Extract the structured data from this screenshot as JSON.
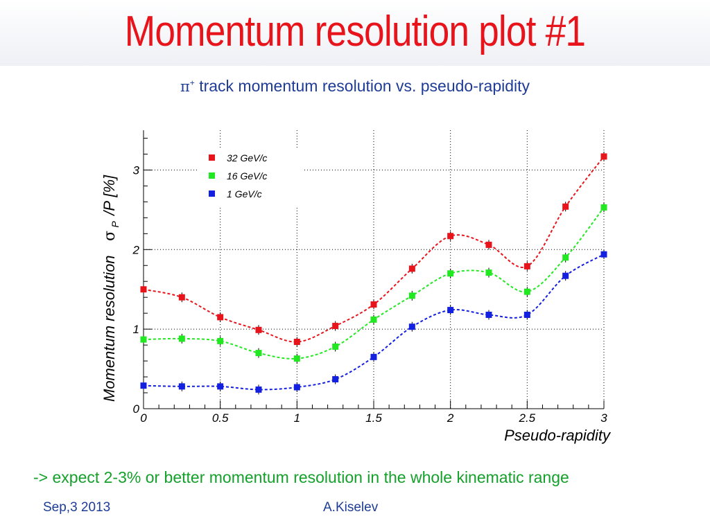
{
  "slide": {
    "title": "Momentum resolution plot #1",
    "subtitle_symbol": "π",
    "subtitle_sup": "+",
    "subtitle_text": "track momentum resolution vs. pseudo-rapidity",
    "note": "-> expect 2-3% or better momentum resolution in the whole kinematic range",
    "footer_date": "Sep,3 2013",
    "footer_author": "A.Kiselev",
    "colors": {
      "title": "#e8141c",
      "subtitle": "#1e3c96",
      "note": "#14a02a",
      "footer": "#1e3c96"
    }
  },
  "chart_data": {
    "type": "scatter",
    "xlabel": "Pseudo-rapidity",
    "ylabel_text": "Momentum resolution",
    "ylabel_sigma": "σ",
    "ylabel_sub": "P",
    "ylabel_unit": "/P  [%]",
    "xlim": [
      0,
      3
    ],
    "ylim": [
      0,
      3.5
    ],
    "x_ticks": [
      0,
      0.5,
      1,
      1.5,
      2,
      2.5,
      3
    ],
    "x_tick_labels": [
      "0",
      "0.5",
      "1",
      "1.5",
      "2",
      "2.5",
      "3"
    ],
    "y_ticks": [
      0,
      1,
      2,
      3
    ],
    "y_tick_labels": [
      "0",
      "1",
      "2",
      "3"
    ],
    "grid": true,
    "legend_position": "top-left",
    "x": [
      0,
      0.25,
      0.5,
      0.75,
      1,
      1.25,
      1.5,
      1.75,
      2,
      2.25,
      2.5,
      2.75,
      3
    ],
    "series": [
      {
        "name": "32 GeV/c",
        "color": "#e8141c",
        "values": [
          1.5,
          1.4,
          1.15,
          0.99,
          0.84,
          1.04,
          1.31,
          1.76,
          2.17,
          2.06,
          1.79,
          2.54,
          3.17
        ]
      },
      {
        "name": "16 GeV/c",
        "color": "#22e822",
        "values": [
          0.87,
          0.88,
          0.85,
          0.7,
          0.63,
          0.78,
          1.12,
          1.42,
          1.7,
          1.71,
          1.47,
          1.9,
          2.53
        ]
      },
      {
        "name": "1  GeV/c",
        "color": "#1420e0",
        "values": [
          0.29,
          0.28,
          0.28,
          0.24,
          0.27,
          0.37,
          0.65,
          1.03,
          1.24,
          1.18,
          1.18,
          1.67,
          1.94
        ]
      }
    ]
  }
}
